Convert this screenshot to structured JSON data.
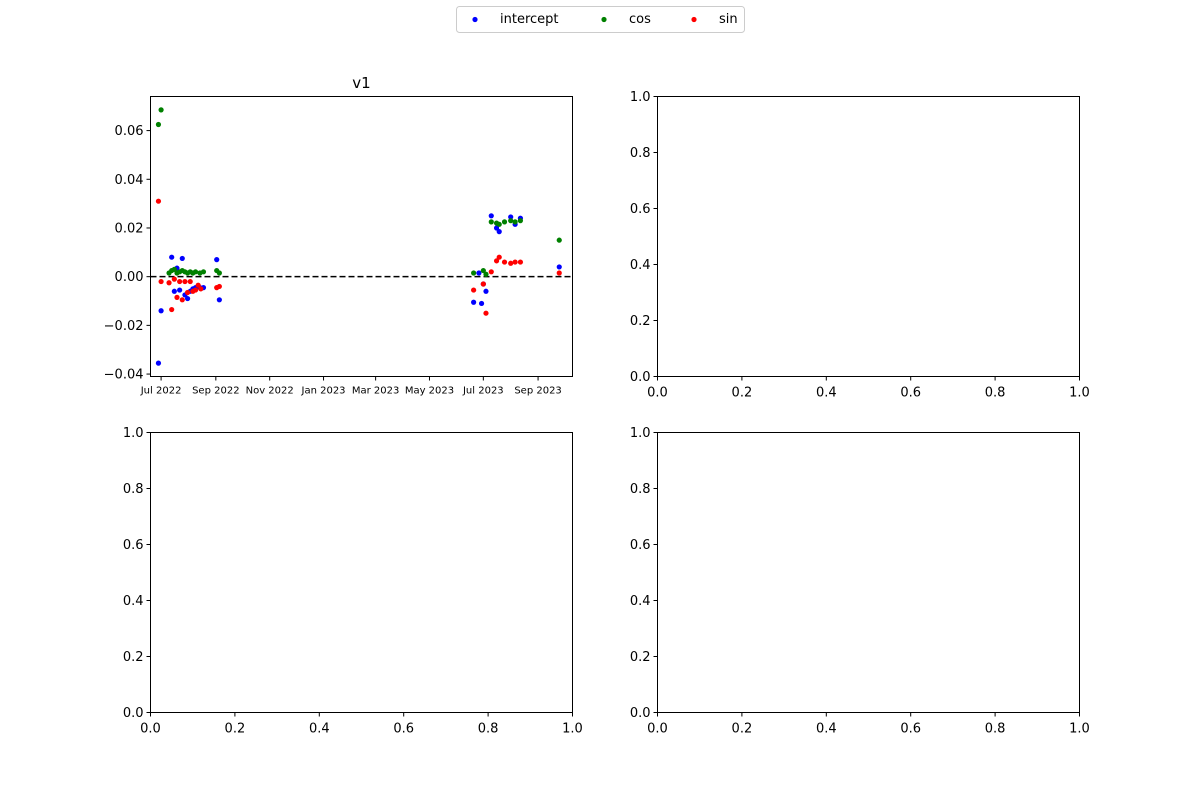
{
  "legend": {
    "placement": "top-center",
    "items": [
      {
        "label": "intercept",
        "color": "#0000ff"
      },
      {
        "label": "cos",
        "color": "#008000"
      },
      {
        "label": "sin",
        "color": "#ff0000"
      }
    ]
  },
  "chart_data": [
    {
      "type": "scatter",
      "title": "v1",
      "xlabel": "",
      "ylabel": "",
      "x_axis_type": "date",
      "xlim": [
        "2022-06-19",
        "2023-10-10"
      ],
      "ylim": [
        -0.041,
        0.074
      ],
      "x_ticks": [
        {
          "date": "2022-07-01",
          "label": "Jul 2022"
        },
        {
          "date": "2022-09-01",
          "label": "Sep 2022"
        },
        {
          "date": "2022-11-01",
          "label": "Nov 2022"
        },
        {
          "date": "2023-01-01",
          "label": "Jan 2023"
        },
        {
          "date": "2023-03-01",
          "label": "Mar 2023"
        },
        {
          "date": "2023-05-01",
          "label": "May 2023"
        },
        {
          "date": "2023-07-01",
          "label": "Jul 2023"
        },
        {
          "date": "2023-09-01",
          "label": "Sep 2023"
        }
      ],
      "y_ticks": [
        {
          "value": -0.04,
          "label": "−0.04"
        },
        {
          "value": -0.02,
          "label": "−0.02"
        },
        {
          "value": 0.0,
          "label": "0.00"
        },
        {
          "value": 0.02,
          "label": "0.02"
        },
        {
          "value": 0.04,
          "label": "0.04"
        },
        {
          "value": 0.06,
          "label": "0.06"
        }
      ],
      "reference_line": {
        "y": 0,
        "style": "dashed",
        "color": "#000000"
      },
      "series": [
        {
          "name": "intercept",
          "color": "#0000ff",
          "points": [
            {
              "x": "2022-06-28",
              "y": -0.0355
            },
            {
              "x": "2022-07-01",
              "y": -0.014
            },
            {
              "x": "2022-07-13",
              "y": 0.008
            },
            {
              "x": "2022-07-16",
              "y": -0.006
            },
            {
              "x": "2022-07-19",
              "y": 0.0035
            },
            {
              "x": "2022-07-22",
              "y": -0.0055
            },
            {
              "x": "2022-07-25",
              "y": 0.0075
            },
            {
              "x": "2022-07-28",
              "y": -0.0075
            },
            {
              "x": "2022-07-31",
              "y": -0.009
            },
            {
              "x": "2022-08-03",
              "y": -0.006
            },
            {
              "x": "2022-08-06",
              "y": -0.005
            },
            {
              "x": "2022-08-09",
              "y": -0.0045
            },
            {
              "x": "2022-08-14",
              "y": -0.0045
            },
            {
              "x": "2022-08-18",
              "y": -0.0045
            },
            {
              "x": "2022-09-02",
              "y": 0.007
            },
            {
              "x": "2022-09-05",
              "y": -0.0095
            },
            {
              "x": "2023-06-20",
              "y": -0.0105
            },
            {
              "x": "2023-06-26",
              "y": 0.0015
            },
            {
              "x": "2023-06-29",
              "y": -0.011
            },
            {
              "x": "2023-07-01",
              "y": -0.003
            },
            {
              "x": "2023-07-04",
              "y": -0.006
            },
            {
              "x": "2023-07-10",
              "y": 0.025
            },
            {
              "x": "2023-07-16",
              "y": 0.02
            },
            {
              "x": "2023-07-19",
              "y": 0.0185
            },
            {
              "x": "2023-08-01",
              "y": 0.0245
            },
            {
              "x": "2023-08-06",
              "y": 0.0215
            },
            {
              "x": "2023-08-12",
              "y": 0.024
            },
            {
              "x": "2023-09-25",
              "y": 0.004
            }
          ]
        },
        {
          "name": "cos",
          "color": "#008000",
          "points": [
            {
              "x": "2022-06-28",
              "y": 0.0625
            },
            {
              "x": "2022-07-01",
              "y": 0.0685
            },
            {
              "x": "2022-07-10",
              "y": 0.0015
            },
            {
              "x": "2022-07-13",
              "y": 0.0025
            },
            {
              "x": "2022-07-16",
              "y": 0.003
            },
            {
              "x": "2022-07-19",
              "y": 0.0015
            },
            {
              "x": "2022-07-22",
              "y": 0.002
            },
            {
              "x": "2022-07-25",
              "y": 0.0025
            },
            {
              "x": "2022-07-28",
              "y": 0.002
            },
            {
              "x": "2022-07-31",
              "y": 0.0015
            },
            {
              "x": "2022-08-03",
              "y": 0.002
            },
            {
              "x": "2022-08-06",
              "y": 0.0015
            },
            {
              "x": "2022-08-09",
              "y": 0.002
            },
            {
              "x": "2022-08-14",
              "y": 0.0015
            },
            {
              "x": "2022-08-18",
              "y": 0.002
            },
            {
              "x": "2022-09-02",
              "y": 0.0025
            },
            {
              "x": "2022-09-05",
              "y": 0.0015
            },
            {
              "x": "2023-06-20",
              "y": 0.0015
            },
            {
              "x": "2023-07-01",
              "y": 0.0025
            },
            {
              "x": "2023-07-04",
              "y": 0.001
            },
            {
              "x": "2023-07-10",
              "y": 0.0225
            },
            {
              "x": "2023-07-16",
              "y": 0.022
            },
            {
              "x": "2023-07-19",
              "y": 0.0215
            },
            {
              "x": "2023-07-25",
              "y": 0.0225
            },
            {
              "x": "2023-08-01",
              "y": 0.023
            },
            {
              "x": "2023-08-06",
              "y": 0.0225
            },
            {
              "x": "2023-08-12",
              "y": 0.023
            },
            {
              "x": "2023-09-25",
              "y": 0.015
            }
          ]
        },
        {
          "name": "sin",
          "color": "#ff0000",
          "points": [
            {
              "x": "2022-06-28",
              "y": 0.031
            },
            {
              "x": "2022-07-01",
              "y": -0.002
            },
            {
              "x": "2022-07-10",
              "y": -0.0025
            },
            {
              "x": "2022-07-13",
              "y": -0.0135
            },
            {
              "x": "2022-07-16",
              "y": -0.001
            },
            {
              "x": "2022-07-19",
              "y": -0.0085
            },
            {
              "x": "2022-07-22",
              "y": -0.002
            },
            {
              "x": "2022-07-25",
              "y": -0.0095
            },
            {
              "x": "2022-07-28",
              "y": -0.002
            },
            {
              "x": "2022-07-31",
              "y": -0.0065
            },
            {
              "x": "2022-08-03",
              "y": -0.002
            },
            {
              "x": "2022-08-06",
              "y": -0.006
            },
            {
              "x": "2022-08-09",
              "y": -0.0055
            },
            {
              "x": "2022-08-12",
              "y": -0.0035
            },
            {
              "x": "2022-08-15",
              "y": -0.005
            },
            {
              "x": "2022-09-02",
              "y": -0.0045
            },
            {
              "x": "2022-09-05",
              "y": -0.004
            },
            {
              "x": "2023-06-20",
              "y": -0.0055
            },
            {
              "x": "2023-07-01",
              "y": -0.003
            },
            {
              "x": "2023-07-04",
              "y": -0.015
            },
            {
              "x": "2023-07-10",
              "y": 0.002
            },
            {
              "x": "2023-07-16",
              "y": 0.0065
            },
            {
              "x": "2023-07-19",
              "y": 0.008
            },
            {
              "x": "2023-07-25",
              "y": 0.006
            },
            {
              "x": "2023-08-01",
              "y": 0.0055
            },
            {
              "x": "2023-08-06",
              "y": 0.006
            },
            {
              "x": "2023-08-12",
              "y": 0.006
            },
            {
              "x": "2023-09-25",
              "y": 0.0015
            }
          ]
        }
      ]
    },
    {
      "type": "scatter",
      "title": "",
      "xlim": [
        0,
        1
      ],
      "ylim": [
        0,
        1
      ],
      "x_ticks": [
        {
          "value": 0,
          "label": "0.0"
        },
        {
          "value": 0.2,
          "label": "0.2"
        },
        {
          "value": 0.4,
          "label": "0.4"
        },
        {
          "value": 0.6,
          "label": "0.6"
        },
        {
          "value": 0.8,
          "label": "0.8"
        },
        {
          "value": 1,
          "label": "1.0"
        }
      ],
      "y_ticks": [
        {
          "value": 0,
          "label": "0.0"
        },
        {
          "value": 0.2,
          "label": "0.2"
        },
        {
          "value": 0.4,
          "label": "0.4"
        },
        {
          "value": 0.6,
          "label": "0.6"
        },
        {
          "value": 0.8,
          "label": "0.8"
        },
        {
          "value": 1,
          "label": "1.0"
        }
      ],
      "series": []
    },
    {
      "type": "scatter",
      "title": "",
      "xlim": [
        0,
        1
      ],
      "ylim": [
        0,
        1
      ],
      "x_ticks": [
        {
          "value": 0,
          "label": "0.0"
        },
        {
          "value": 0.2,
          "label": "0.2"
        },
        {
          "value": 0.4,
          "label": "0.4"
        },
        {
          "value": 0.6,
          "label": "0.6"
        },
        {
          "value": 0.8,
          "label": "0.8"
        },
        {
          "value": 1,
          "label": "1.0"
        }
      ],
      "y_ticks": [
        {
          "value": 0,
          "label": "0.0"
        },
        {
          "value": 0.2,
          "label": "0.2"
        },
        {
          "value": 0.4,
          "label": "0.4"
        },
        {
          "value": 0.6,
          "label": "0.6"
        },
        {
          "value": 0.8,
          "label": "0.8"
        },
        {
          "value": 1,
          "label": "1.0"
        }
      ],
      "series": []
    },
    {
      "type": "scatter",
      "title": "",
      "xlim": [
        0,
        1
      ],
      "ylim": [
        0,
        1
      ],
      "x_ticks": [
        {
          "value": 0,
          "label": "0.0"
        },
        {
          "value": 0.2,
          "label": "0.2"
        },
        {
          "value": 0.4,
          "label": "0.4"
        },
        {
          "value": 0.6,
          "label": "0.6"
        },
        {
          "value": 0.8,
          "label": "0.8"
        },
        {
          "value": 1,
          "label": "1.0"
        }
      ],
      "y_ticks": [
        {
          "value": 0,
          "label": "0.0"
        },
        {
          "value": 0.2,
          "label": "0.2"
        },
        {
          "value": 0.4,
          "label": "0.4"
        },
        {
          "value": 0.6,
          "label": "0.6"
        },
        {
          "value": 0.8,
          "label": "0.8"
        },
        {
          "value": 1,
          "label": "1.0"
        }
      ],
      "series": []
    }
  ]
}
